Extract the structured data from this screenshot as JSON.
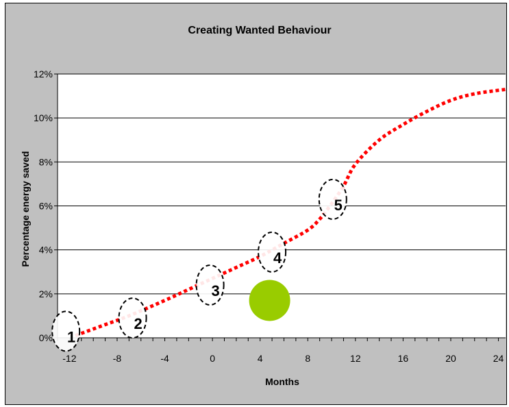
{
  "chart_data": {
    "type": "line",
    "title": "Creating Wanted Behaviour",
    "xlabel": "Months",
    "ylabel": "Percentage energy saved",
    "xlim": [
      -13,
      24.6
    ],
    "ylim": [
      0,
      12
    ],
    "x_ticks": [
      "-12",
      "-8",
      "-4",
      "0",
      "4",
      "8",
      "12",
      "16",
      "20",
      "24"
    ],
    "x_tick_values": [
      -12,
      -8,
      -4,
      0,
      4,
      8,
      12,
      16,
      20,
      24
    ],
    "y_ticks": [
      "0%",
      "2%",
      "4%",
      "6%",
      "8%",
      "10%",
      "12%"
    ],
    "y_tick_values": [
      0,
      2,
      4,
      6,
      8,
      10,
      12
    ],
    "grid": true,
    "series": [
      {
        "color": "#ff0000",
        "style": "dotted",
        "x": [
          -11.5,
          -9,
          -7,
          -4,
          -2,
          0,
          2,
          4,
          6,
          8,
          9,
          10,
          11,
          12,
          14,
          16,
          18,
          20,
          22,
          24.6
        ],
        "y": [
          0.1,
          0.6,
          1.0,
          1.7,
          2.2,
          2.7,
          3.2,
          3.7,
          4.3,
          4.9,
          5.4,
          6.1,
          6.9,
          7.9,
          9.0,
          9.7,
          10.3,
          10.8,
          11.1,
          11.3
        ]
      }
    ],
    "step_markers": [
      {
        "label": "1",
        "x": -12.3,
        "y": 0.3
      },
      {
        "label": "2",
        "x": -6.7,
        "y": 0.9
      },
      {
        "label": "3",
        "x": -0.2,
        "y": 2.4
      },
      {
        "label": "4",
        "x": 5.0,
        "y": 3.9
      },
      {
        "label": "5",
        "x": 10.1,
        "y": 6.3
      }
    ],
    "highlight_point": {
      "x": 4.8,
      "y": 1.7,
      "color": "#99cc00"
    }
  }
}
